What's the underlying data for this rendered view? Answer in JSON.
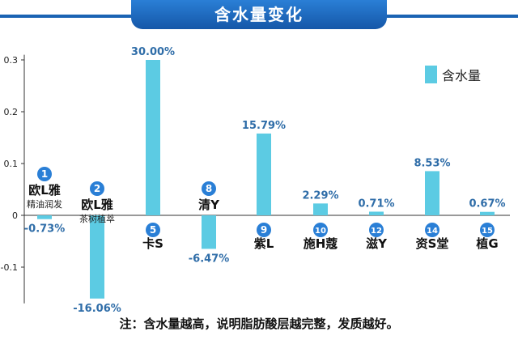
{
  "chart_data": {
    "type": "bar",
    "title": "含水量变化",
    "legend": {
      "label": "含水量",
      "position": "top-right"
    },
    "ylim": [
      -0.17,
      0.31
    ],
    "y_ticks": [
      "0.3",
      "0.2",
      "0.1",
      "0",
      "-0.1"
    ],
    "y_tick_values": [
      0.3,
      0.2,
      0.1,
      0,
      -0.1
    ],
    "bar_color": "#5ccbe3",
    "badge_color": "#2a7fd6",
    "categories": [
      {
        "num": "1",
        "name": "欧L雅",
        "sub": "精油润发",
        "value": -0.0073,
        "label": "-0.73%"
      },
      {
        "num": "2",
        "name": "欧L雅",
        "sub": "茶树植萃",
        "value": -0.1606,
        "label": "-16.06%"
      },
      {
        "num": "5",
        "name": "卡S",
        "sub": "",
        "value": 0.3,
        "label": "30.00%"
      },
      {
        "num": "8",
        "name": "清Y",
        "sub": "",
        "value": -0.0647,
        "label": "-6.47%"
      },
      {
        "num": "9",
        "name": "紫L",
        "sub": "",
        "value": 0.1579,
        "label": "15.79%"
      },
      {
        "num": "10",
        "name": "施H蔻",
        "sub": "",
        "value": 0.0229,
        "label": "2.29%"
      },
      {
        "num": "12",
        "name": "滋Y",
        "sub": "",
        "value": 0.0071,
        "label": "0.71%"
      },
      {
        "num": "14",
        "name": "资S堂",
        "sub": "",
        "value": 0.0853,
        "label": "8.53%"
      },
      {
        "num": "15",
        "name": "植G",
        "sub": "",
        "value": 0.0067,
        "label": "0.67%"
      }
    ]
  },
  "footer_note": "注：含水量越高，说明脂肪酸层越完整，发质越好。"
}
